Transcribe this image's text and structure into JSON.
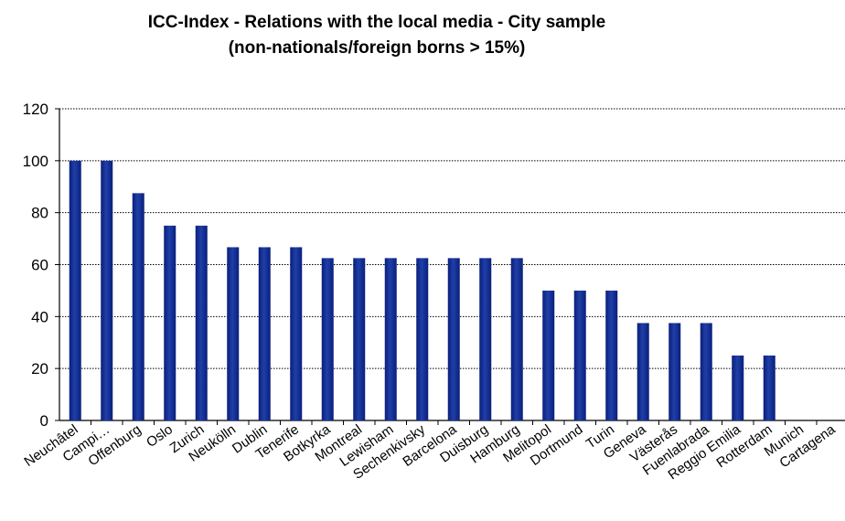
{
  "chart_data": {
    "type": "bar",
    "title_lines": [
      "ICC-Index - Relations with the  local media - City sample",
      "(non-nationals/foreign borns > 15%)"
    ],
    "xlabel": "",
    "ylabel": "",
    "ylim": [
      0,
      120
    ],
    "yticks": [
      0,
      20,
      40,
      60,
      80,
      100,
      120
    ],
    "grid": true,
    "legend": "none",
    "bar_color": "#1f3fa8",
    "categories": [
      "Neuchâtel",
      "Campi…",
      "Offenburg",
      "Oslo",
      "Zurich",
      "Neukölln",
      "Dublin",
      "Tenerife",
      "Botkyrka",
      "Montreal",
      "Lewisham",
      "Sechenkivsky",
      "Barcelona",
      "Duisburg",
      "Hamburg",
      "Melitopol",
      "Dortmund",
      "Turin",
      "Geneva",
      "Västerås",
      "Fuenlabrada",
      "Reggio Emilia",
      "Rotterdam",
      "Munich",
      "Cartagena"
    ],
    "values": [
      100,
      100,
      87.5,
      75,
      75,
      66.7,
      66.7,
      66.7,
      62.5,
      62.5,
      62.5,
      62.5,
      62.5,
      62.5,
      62.5,
      50,
      50,
      50,
      37.5,
      37.5,
      37.5,
      25,
      25,
      0,
      0
    ]
  }
}
